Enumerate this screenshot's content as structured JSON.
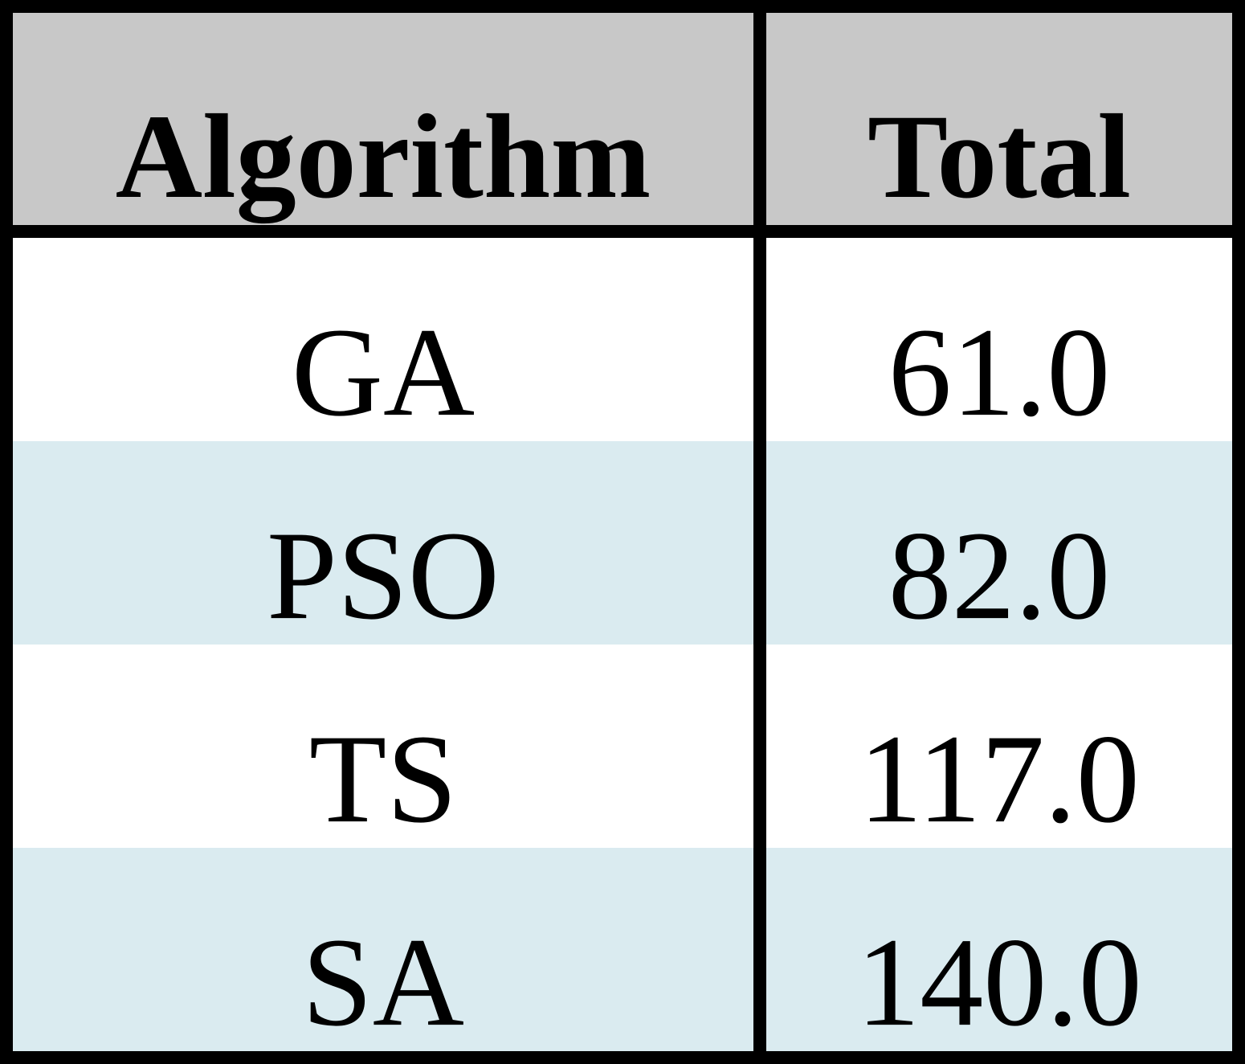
{
  "table": {
    "header": [
      "Algorithm",
      "Total"
    ],
    "rows": [
      [
        "GA",
        "61.0"
      ],
      [
        "PSO",
        "82.0"
      ],
      [
        "TS",
        "117.0"
      ],
      [
        "SA",
        "140.0"
      ]
    ]
  }
}
